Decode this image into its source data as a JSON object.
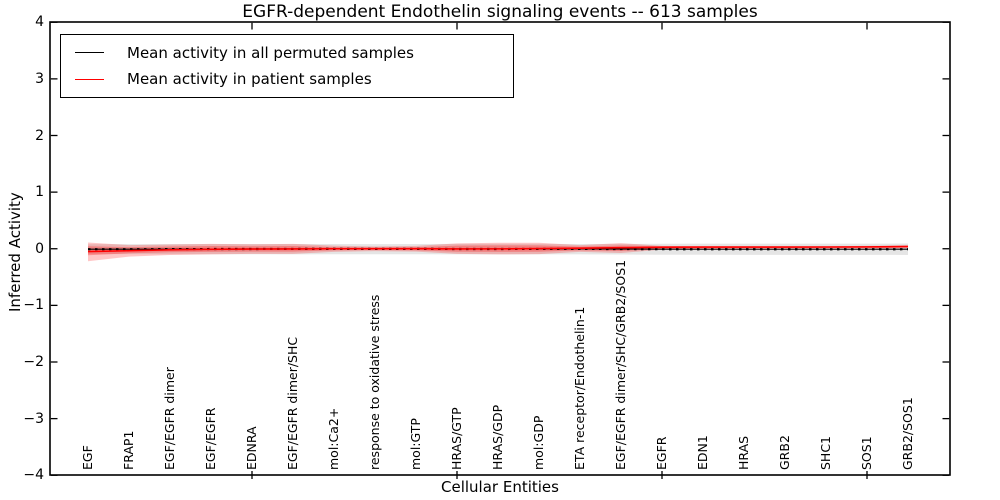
{
  "figure": {
    "title": "EGFR-dependent Endothelin signaling events -- 613 samples",
    "xlabel": "Cellular Entities",
    "ylabel": "Inferred Activity"
  },
  "legend": {
    "items": [
      {
        "label": "Mean activity in all permuted samples",
        "color": "#000000"
      },
      {
        "label": "Mean activity in patient samples",
        "color": "#ff0000"
      }
    ]
  },
  "chart_data": {
    "type": "line",
    "title": "EGFR-dependent Endothelin signaling events -- 613 samples",
    "xlabel": "Cellular Entities",
    "ylabel": "Inferred Activity",
    "ylim": [
      -4,
      4
    ],
    "grid": false,
    "legend_position": "upper left",
    "ytick_labels": [
      "4",
      "3",
      "2",
      "1",
      "0",
      "−1",
      "−2",
      "−3",
      "−4"
    ],
    "ytick_values": [
      4,
      3,
      2,
      1,
      0,
      -1,
      -2,
      -3,
      -4
    ],
    "categories": [
      "EGF",
      "FRAP1",
      "EGF/EGFR dimer",
      "EGF/EGFR",
      "EDNRA",
      "EGF/EGFR dimer/SHC",
      "mol:Ca2+",
      "response to oxidative stress",
      "mol:GTP",
      "HRAS/GTP",
      "HRAS/GDP",
      "mol:GDP",
      "ETA receptor/Endothelin-1",
      "EGF/EGFR dimer/SHC/GRB2/SOS1",
      "EGFR",
      "EDN1",
      "HRAS",
      "GRB2",
      "SHC1",
      "SOS1",
      "GRB2/SOS1"
    ],
    "series": [
      {
        "name": "Mean activity in all permuted samples",
        "color": "#000000",
        "values": [
          -0.008,
          -0.008,
          -0.007,
          -0.005,
          -0.004,
          -0.003,
          -0.002,
          -0.002,
          -0.002,
          -0.004,
          -0.004,
          -0.003,
          -0.002,
          -0.005,
          -0.008,
          -0.009,
          -0.009,
          -0.009,
          -0.009,
          -0.009,
          -0.008
        ]
      },
      {
        "name": "Mean activity in patient samples",
        "color": "#ff0000",
        "values": [
          -0.05,
          -0.035,
          -0.018,
          -0.01,
          -0.006,
          -0.003,
          0.0,
          0.001,
          0.001,
          -0.004,
          -0.002,
          0.004,
          0.01,
          0.018,
          0.028,
          0.03,
          0.03,
          0.03,
          0.031,
          0.033,
          0.04
        ]
      }
    ],
    "bands": [
      {
        "name": "permuted-samples-std-band",
        "color": "rgba(0,0,0,0.10)",
        "upper": [
          0.08,
          0.082,
          0.083,
          0.083,
          0.083,
          0.084,
          0.083,
          0.082,
          0.083,
          0.085,
          0.085,
          0.085,
          0.084,
          0.086,
          0.088,
          0.09,
          0.09,
          0.09,
          0.09,
          0.09,
          0.092
        ],
        "lower": [
          -0.095,
          -0.096,
          -0.097,
          -0.098,
          -0.098,
          -0.099,
          -0.098,
          -0.097,
          -0.098,
          -0.1,
          -0.1,
          -0.1,
          -0.099,
          -0.102,
          -0.105,
          -0.107,
          -0.108,
          -0.108,
          -0.108,
          -0.108,
          -0.11
        ]
      },
      {
        "name": "patient-samples-std-outer-band",
        "color": "rgba(255,0,0,0.22)",
        "upper": [
          0.11,
          0.065,
          0.075,
          0.085,
          0.08,
          0.085,
          0.055,
          0.04,
          0.05,
          0.095,
          0.105,
          0.105,
          0.065,
          0.1,
          0.05,
          0.045,
          0.045,
          0.045,
          0.045,
          0.05,
          0.055
        ],
        "lower": [
          -0.22,
          -0.14,
          -0.11,
          -0.1,
          -0.09,
          -0.09,
          -0.055,
          -0.042,
          -0.05,
          -0.09,
          -0.1,
          -0.095,
          -0.055,
          -0.075,
          -0.015,
          -0.005,
          0.0,
          0.0,
          0.0,
          0.002,
          0.01
        ]
      },
      {
        "name": "patient-samples-std-inner-band",
        "color": "rgba(255,0,0,0.28)",
        "upper": [
          0.045,
          0.028,
          0.04,
          0.048,
          0.044,
          0.048,
          0.028,
          0.02,
          0.027,
          0.055,
          0.06,
          0.06,
          0.038,
          0.058,
          0.042,
          0.04,
          0.04,
          0.04,
          0.04,
          0.042,
          0.047
        ],
        "lower": [
          -0.115,
          -0.08,
          -0.062,
          -0.055,
          -0.05,
          -0.05,
          -0.028,
          -0.02,
          -0.028,
          -0.052,
          -0.055,
          -0.052,
          -0.028,
          -0.04,
          -0.005,
          0.005,
          0.008,
          0.008,
          0.009,
          0.012,
          0.02
        ]
      }
    ],
    "xtick_major_indices": [
      4,
      9,
      14,
      19
    ]
  }
}
